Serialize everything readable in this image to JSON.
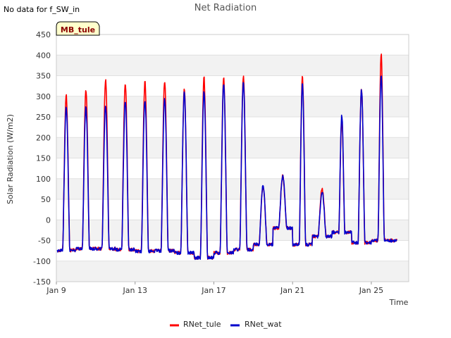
{
  "header": {
    "nodata_text": "No data for f_SW_in"
  },
  "badge": {
    "text": "MB_tule",
    "fill": "#ffffcc"
  },
  "colors": {
    "band": "#f2f2f2",
    "grid": "#e0e0e0"
  },
  "chart_data": {
    "type": "line",
    "title": "Net Radiation",
    "xlabel": "Time",
    "ylabel": "Solar Radiation (W/m2)",
    "xlim": [
      9,
      26.9
    ],
    "ylim": [
      -150,
      450
    ],
    "yticks": [
      -150,
      -100,
      -50,
      0,
      50,
      100,
      150,
      200,
      250,
      300,
      350,
      400,
      450
    ],
    "xticks": [
      {
        "value": 9,
        "label": "Jan 9"
      },
      {
        "value": 13,
        "label": "Jan 13"
      },
      {
        "value": 17,
        "label": "Jan 17"
      },
      {
        "value": 21,
        "label": "Jan 21"
      },
      {
        "value": 25,
        "label": "Jan 25"
      }
    ],
    "legend": "bottom-center",
    "daily": [
      {
        "day": 9.5,
        "night": -74,
        "peak_tule": 302,
        "peak_wat": 272,
        "width": 0.36
      },
      {
        "day": 10.5,
        "night": -70,
        "peak_tule": 315,
        "peak_wat": 273,
        "width": 0.36
      },
      {
        "day": 11.5,
        "night": -70,
        "peak_tule": 338,
        "peak_wat": 278,
        "width": 0.36
      },
      {
        "day": 12.5,
        "night": -72,
        "peak_tule": 333,
        "peak_wat": 287,
        "width": 0.36
      },
      {
        "day": 13.5,
        "night": -76,
        "peak_tule": 336,
        "peak_wat": 292,
        "width": 0.36
      },
      {
        "day": 14.5,
        "night": -75,
        "peak_tule": 336,
        "peak_wat": 295,
        "width": 0.36
      },
      {
        "day": 15.5,
        "night": -80,
        "peak_tule": 315,
        "peak_wat": 312,
        "width": 0.36
      },
      {
        "day": 16.5,
        "night": -92,
        "peak_tule": 345,
        "peak_wat": 310,
        "width": 0.36
      },
      {
        "day": 17.5,
        "night": -80,
        "peak_tule": 344,
        "peak_wat": 333,
        "width": 0.36
      },
      {
        "day": 18.5,
        "night": -72,
        "peak_tule": 348,
        "peak_wat": 337,
        "width": 0.36
      },
      {
        "day": 19.5,
        "night": -60,
        "peak_tule": 80,
        "peak_wat": 82,
        "width": 0.4
      },
      {
        "day": 20.5,
        "night": -20,
        "peak_tule": 105,
        "peak_wat": 107,
        "width": 0.4
      },
      {
        "day": 21.5,
        "night": -60,
        "peak_tule": 346,
        "peak_wat": 330,
        "width": 0.32
      },
      {
        "day": 22.5,
        "night": -40,
        "peak_tule": 76,
        "peak_wat": 66,
        "width": 0.4
      },
      {
        "day": 23.5,
        "night": -30,
        "peak_tule": 240,
        "peak_wat": 253,
        "width": 0.3
      },
      {
        "day": 24.5,
        "night": -55,
        "peak_tule": 316,
        "peak_wat": 318,
        "width": 0.34
      },
      {
        "day": 25.5,
        "night": -50,
        "peak_tule": 401,
        "peak_wat": 355,
        "width": 0.32
      }
    ],
    "series": [
      {
        "name": "RNet_tule",
        "color": "#ff0000"
      },
      {
        "name": "RNet_wat",
        "color": "#0000cc"
      }
    ],
    "x_end": 26.3
  }
}
